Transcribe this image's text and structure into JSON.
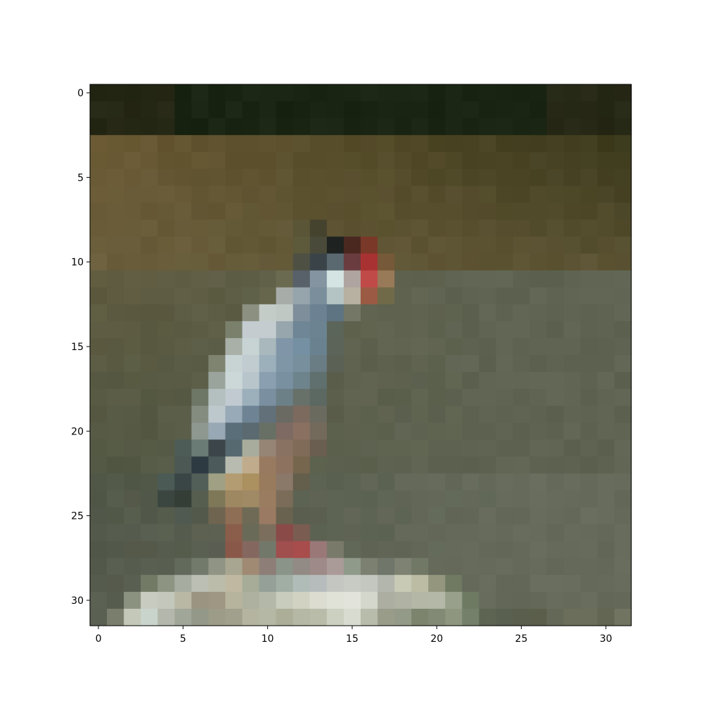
{
  "chart_data": {
    "type": "heatmap",
    "title": "",
    "xlabel": "",
    "ylabel": "",
    "grid": false,
    "image_shape": [
      32,
      32
    ],
    "xlim": [
      -0.5,
      31.5
    ],
    "ylim": [
      31.5,
      -0.5
    ],
    "x_ticks": [
      0,
      5,
      10,
      15,
      20,
      25,
      30
    ],
    "y_ticks": [
      0,
      5,
      10,
      15,
      20,
      25,
      30
    ],
    "x_tick_labels": [
      "0",
      "5",
      "10",
      "15",
      "20",
      "25",
      "30"
    ],
    "y_tick_labels": [
      "0",
      "5",
      "10",
      "15",
      "20",
      "25",
      "30"
    ],
    "colors": {
      "background_top": "#1a2412",
      "background_upper_left": "#6b5a34",
      "background_left": "#5e5a3e",
      "background_right": "#5f6452",
      "background_bottom_left": "#585e50",
      "bird_white": "#d6e0de",
      "bird_blue_grey": "#7f97a4",
      "bird_dark": "#2e3a40",
      "bird_tan": "#b39a72",
      "bird_red": "#c04a48",
      "bird_black": "#1e2220",
      "ground_light": "#c4c6b8"
    }
  }
}
